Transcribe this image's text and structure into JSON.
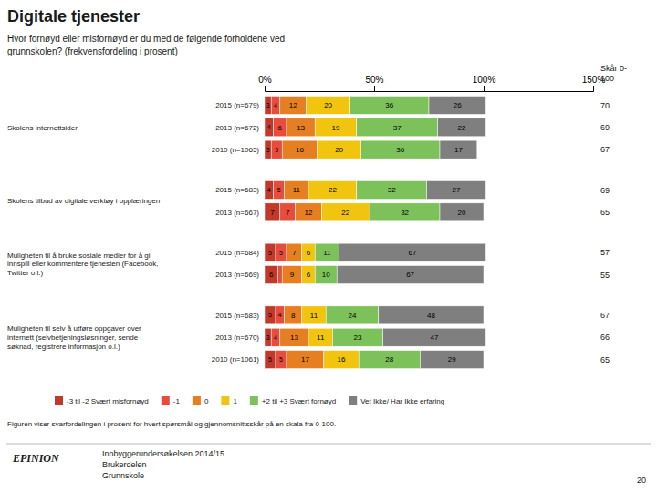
{
  "chart_data": {
    "type": "bar",
    "orientation": "horizontal",
    "stacked": true,
    "data_labels": true,
    "title": "Digitale tjenester",
    "subtitle": "Hvor fornøyd eller misfornøyd er du med de følgende forholdene ved\ngrunnskolen? (frekvensfordeling i prosent)",
    "groups": [
      {
        "label": "Skolens internettsider",
        "categories": [
          "2015 (n=679)",
          "2013 (n=672)",
          "2010 (n=1065)"
        ]
      },
      {
        "label": "Skolens tilbud av digitale verktøy i opplæringen",
        "categories": [
          "2015 (n=683)",
          "2013 (n=667)"
        ]
      },
      {
        "label": "Muligheten til å bruke sosiale medier for å gi\ninnspill eller kommentere tjenesten (Facebook,\nTwitter o.l.)",
        "categories": [
          "2015 (n=684)",
          "2013 (n=669)"
        ]
      },
      {
        "label": "Muligheten til selv å utføre oppgaver over\ninternett (selvbetjeningsløsninger, sende\nsøknad, registrere informasjon o.l.)",
        "categories": [
          "2015 (n=683)",
          "2013 (n=670)",
          "2010 (n=1061)"
        ]
      }
    ],
    "series": [
      {
        "name": "-3 til -2 Svært misfornøyd",
        "color": "#c0392b",
        "values": [
          3,
          4,
          3,
          4,
          7,
          5,
          6,
          5,
          3,
          5
        ]
      },
      {
        "name": "-1",
        "color": "#e74c3c",
        "values": [
          4,
          6,
          5,
          5,
          7,
          5,
          2,
          4,
          4,
          5
        ]
      },
      {
        "name": "0",
        "color": "#e67e22",
        "values": [
          12,
          13,
          16,
          11,
          12,
          7,
          9,
          8,
          13,
          17
        ]
      },
      {
        "name": "1",
        "color": "#f1c40f",
        "values": [
          20,
          19,
          20,
          22,
          22,
          6,
          6,
          11,
          11,
          16
        ]
      },
      {
        "name": "+2 til +3 Svært fornøyd",
        "color": "#7dc15a",
        "values": [
          36,
          37,
          36,
          32,
          32,
          11,
          10,
          24,
          23,
          28
        ]
      },
      {
        "name": "Vet Ikke/ Har Ikke erfaring",
        "color": "#7f7f7f",
        "values": [
          26,
          22,
          17,
          27,
          20,
          67,
          67,
          48,
          47,
          29
        ]
      }
    ],
    "scores": [
      70,
      69,
      67,
      69,
      65,
      57,
      55,
      67,
      66,
      65
    ],
    "score_label": "Skår 0-\n100",
    "xlim": [
      0,
      150
    ],
    "xticks": [
      {
        "value": 0,
        "label": "0%"
      },
      {
        "value": 50,
        "label": "50%"
      },
      {
        "value": 100,
        "label": "100%"
      },
      {
        "value": 150,
        "label": "150%"
      }
    ],
    "footnote": "Figuren viser svarfordelingen i prosent for hvert spørsmål og gjennomsnittsskår på en skala fra 0-100.",
    "logo": "EPINION",
    "footer": [
      "Innbyggerundersøkelsen 2014/15",
      "Brukerdelen",
      "Grunnskole"
    ],
    "page_number": "20"
  }
}
